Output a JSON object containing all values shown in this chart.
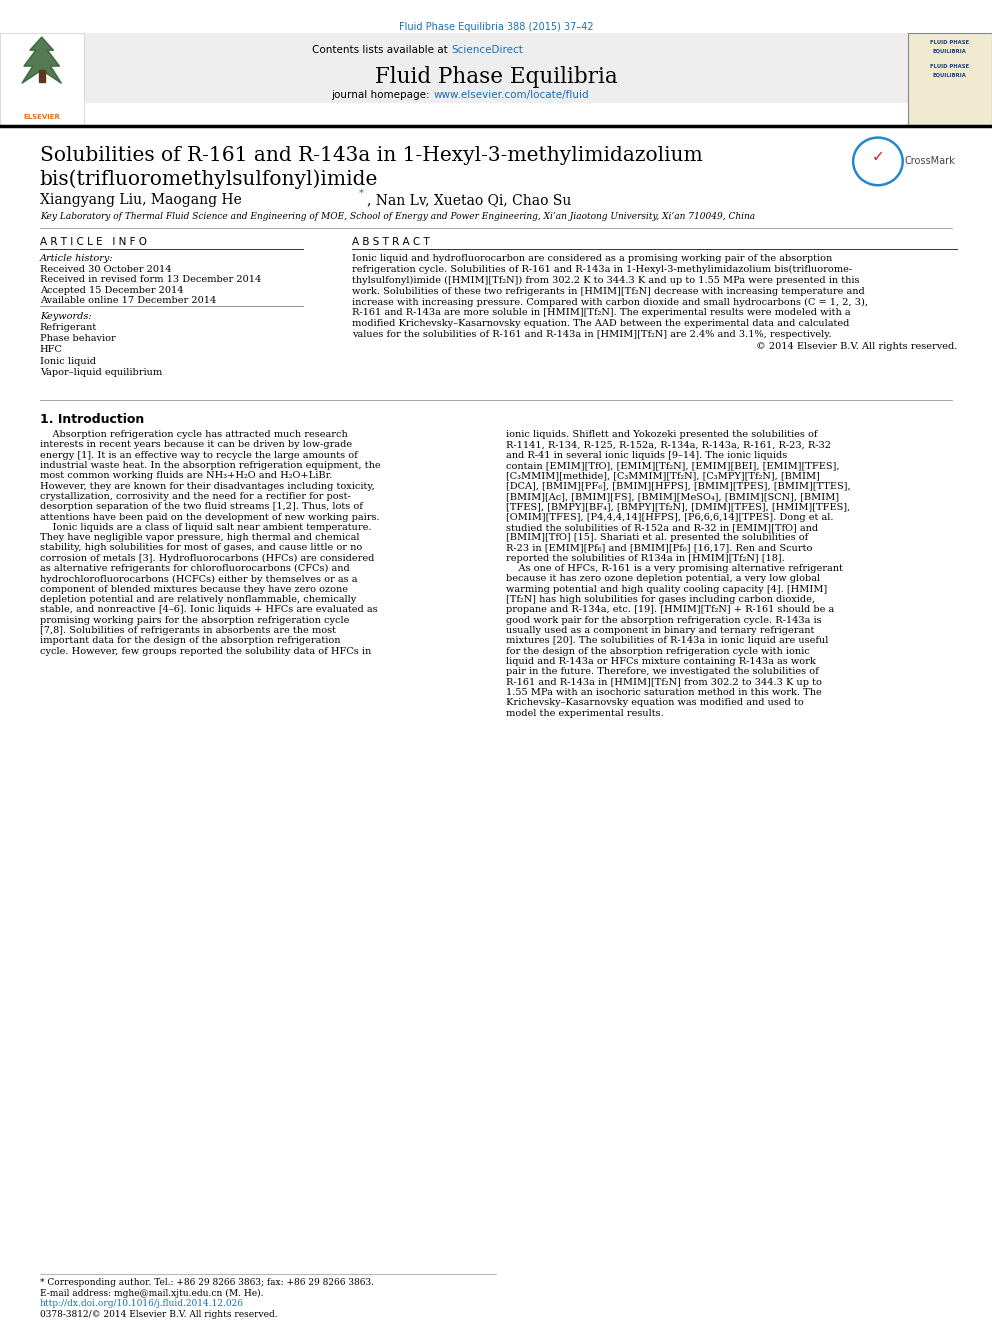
{
  "journal_ref": "Fluid Phase Equilibria 388 (2015) 37–42",
  "journal_name": "Fluid Phase Equilibria",
  "contents_text": "Contents lists available at ScienceDirect",
  "journal_homepage": "journal homepage: www.elsevier.com/locate/fluid",
  "article_title_line1": "Solubilities of R-161 and R-143a in 1-Hexyl-3-methylimidazolium",
  "article_title_line2": "bis(trifluoromethylsulfonyl)imide",
  "affiliation": "Key Laboratory of Thermal Fluid Science and Engineering of MOE, School of Energy and Power Engineering, Xi’an Jiaotong University, Xi’an 710049, China",
  "article_info_header": "A R T I C L E   I N F O",
  "article_history_header": "Article history:",
  "received": "Received 30 October 2014",
  "revised": "Received in revised form 13 December 2014",
  "accepted": "Accepted 15 December 2014",
  "available": "Available online 17 December 2014",
  "keywords_header": "Keywords:",
  "keywords": [
    "Refrigerant",
    "Phase behavior",
    "HFC",
    "Ionic liquid",
    "Vapor–liquid equilibrium"
  ],
  "abstract_header": "A B S T R A C T",
  "copyright": "© 2014 Elsevier B.V. All rights reserved.",
  "intro_header": "1. Introduction",
  "footnote_star": "* Corresponding author. Tel.: +86 29 8266 3863; fax: +86 29 8266 3863.",
  "footnote_email": "E-mail address: mghe@mail.xjtu.edu.cn (M. He).",
  "doi": "http://dx.doi.org/10.1016/j.fluid.2014.12.026",
  "issn": "0378-3812/© 2014 Elsevier B.V. All rights reserved.",
  "bg_color": "#ffffff",
  "link_color": "#1a6eb5",
  "text_color": "#000000",
  "title_color": "#000000",
  "journal_ref_color": "#1a6eb5",
  "abstract_lines": [
    "Ionic liquid and hydrofluorocarbon are considered as a promising working pair of the absorption",
    "refrigeration cycle. Solubilities of R-161 and R-143a in 1-Hexyl-3-methylimidazolium bis(trifluorome-",
    "thylsulfonyl)imide ([HMIM][Tf₂N]) from 302.2 K to 344.3 K and up to 1.55 MPa were presented in this",
    "work. Solubilities of these two refrigerants in [HMIM][Tf₂N] decrease with increasing temperature and",
    "increase with increasing pressure. Compared with carbon dioxide and small hydrocarbons (C = 1, 2, 3),",
    "R-161 and R-143a are more soluble in [HMIM][Tf₂N]. The experimental results were modeled with a",
    "modified Krichevsky–Kasarnovsky equation. The AAD between the experimental data and calculated",
    "values for the solubilities of R-161 and R-143a in [HMIM][Tf₂N] are 2.4% and 3.1%, respectively."
  ],
  "intro_col1_lines": [
    "    Absorption refrigeration cycle has attracted much research",
    "interests in recent years because it can be driven by low-grade",
    "energy [1]. It is an effective way to recycle the large amounts of",
    "industrial waste heat. In the absorption refrigeration equipment, the",
    "most common working fluids are NH₃+H₂O and H₂O+LiBr.",
    "However, they are known for their disadvantages including toxicity,",
    "crystallization, corrosivity and the need for a rectifier for post-",
    "desorption separation of the two fluid streams [1,2]. Thus, lots of",
    "attentions have been paid on the development of new working pairs.",
    "    Ionic liquids are a class of liquid salt near ambient temperature.",
    "They have negligible vapor pressure, high thermal and chemical",
    "stability, high solubilities for most of gases, and cause little or no",
    "corrosion of metals [3]. Hydrofluorocarbons (HFCs) are considered",
    "as alternative refrigerants for chlorofluorocarbons (CFCs) and",
    "hydrochlorofluorocarbons (HCFCs) either by themselves or as a",
    "component of blended mixtures because they have zero ozone",
    "depletion potential and are relatively nonflammable, chemically",
    "stable, and nonreactive [4–6]. Ionic liquids + HFCs are evaluated as",
    "promising working pairs for the absorption refrigeration cycle",
    "[7,8]. Solubilities of refrigerants in absorbents are the most",
    "important data for the design of the absorption refrigeration",
    "cycle. However, few groups reported the solubility data of HFCs in"
  ],
  "intro_col2_lines": [
    "ionic liquids. Shiflett and Yokozeki presented the solubilities of",
    "R-1141, R-134, R-125, R-152a, R-134a, R-143a, R-161, R-23, R-32",
    "and R-41 in several ionic liquids [9–14]. The ionic liquids",
    "contain [EMIM][TfO], [EMIM][Tf₂N], [EMIM][BEI], [EMIM][TFES],",
    "[C₃MMIM][methide], [C₃MMIM][Tf₂N], [C₃MPY][Tf₂N], [BMIM]",
    "[DCA], [BMIM][PF₆], [BMIM][HFPS], [BMIM][TPES], [BMIM][TTES],",
    "[BMIM][Ac], [BMIM][FS], [BMIM][MeSO₄], [BMIM][SCN], [BMIM]",
    "[TFES], [BMPY][BF₄], [BMPY][Tf₂N], [DMIM][TFES], [HMIM][TFES],",
    "[OMIM][TFES], [P4,4,4,14][HFPS], [P6,6,6,14][TPES]. Dong et al.",
    "studied the solubilities of R-152a and R-32 in [EMIM][TfO] and",
    "[BMIM][TfO] [15]. Shariati et al. presented the solubilities of",
    "R-23 in [EMIM][Pf₆] and [BMIM][Pf₆] [16,17]. Ren and Scurto",
    "reported the solubilities of R134a in [HMIM][Tf₂N] [18].",
    "    As one of HFCs, R-161 is a very promising alternative refrigerant",
    "because it has zero ozone depletion potential, a very low global",
    "warming potential and high quality cooling capacity [4]. [HMIM]",
    "[Tf₂N] has high solubilities for gases including carbon dioxide,",
    "propane and R-134a, etc. [19]. [HMIM][Tf₂N] + R-161 should be a",
    "good work pair for the absorption refrigeration cycle. R-143a is",
    "usually used as a component in binary and ternary refrigerant",
    "mixtures [20]. The solubilities of R-143a in ionic liquid are useful",
    "for the design of the absorption refrigeration cycle with ionic",
    "liquid and R-143a or HFCs mixture containing R-143a as work",
    "pair in the future. Therefore, we investigated the solubilities of",
    "R-161 and R-143a in [HMIM][Tf₂N] from 302.2 to 344.3 K up to",
    "1.55 MPa with an isochoric saturation method in this work. The",
    "Krichevsky–Kasarnovsky equation was modified and used to",
    "model the experimental results."
  ]
}
